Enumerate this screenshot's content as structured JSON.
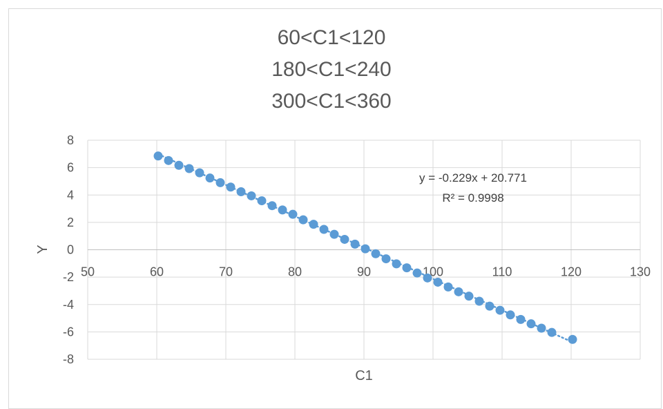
{
  "chart_data": {
    "type": "scatter",
    "title_lines": [
      "60<C1<120",
      "180<C1<240",
      "300<C1<360"
    ],
    "xlabel": "C1",
    "ylabel": "Y",
    "xlim": [
      50,
      130
    ],
    "ylim": [
      -8,
      8
    ],
    "x_ticks": [
      50,
      60,
      70,
      80,
      90,
      100,
      110,
      120,
      130
    ],
    "y_ticks": [
      8,
      6,
      4,
      2,
      0,
      -2,
      -4,
      -6,
      -8
    ],
    "grid": true,
    "marker_color": "#5B9BD5",
    "trendline": {
      "type": "linear",
      "slope": -0.229,
      "intercept": 20.771,
      "equation": "y = -0.229x + 20.771",
      "r_squared": "R² = 0.9998",
      "style": "dotted"
    },
    "series": [
      {
        "points": [
          [
            60.2,
            6.85
          ],
          [
            61.7,
            6.52
          ],
          [
            63.2,
            6.17
          ],
          [
            64.7,
            5.93
          ],
          [
            66.2,
            5.62
          ],
          [
            67.7,
            5.24
          ],
          [
            69.2,
            4.9
          ],
          [
            70.7,
            4.58
          ],
          [
            72.2,
            4.24
          ],
          [
            73.7,
            3.94
          ],
          [
            75.2,
            3.58
          ],
          [
            76.7,
            3.22
          ],
          [
            78.2,
            2.91
          ],
          [
            79.7,
            2.59
          ],
          [
            81.2,
            2.19
          ],
          [
            82.7,
            1.86
          ],
          [
            84.2,
            1.49
          ],
          [
            85.7,
            1.13
          ],
          [
            87.2,
            0.76
          ],
          [
            88.7,
            0.41
          ],
          [
            90.2,
            0.07
          ],
          [
            91.7,
            -0.29
          ],
          [
            93.2,
            -0.66
          ],
          [
            94.7,
            -1.03
          ],
          [
            96.2,
            -1.32
          ],
          [
            97.7,
            -1.7
          ],
          [
            99.2,
            -2.06
          ],
          [
            100.7,
            -2.37
          ],
          [
            102.2,
            -2.72
          ],
          [
            103.7,
            -3.07
          ],
          [
            105.2,
            -3.39
          ],
          [
            106.7,
            -3.76
          ],
          [
            108.2,
            -4.12
          ],
          [
            109.7,
            -4.42
          ],
          [
            111.2,
            -4.76
          ],
          [
            112.7,
            -5.09
          ],
          [
            114.2,
            -5.41
          ],
          [
            115.7,
            -5.73
          ],
          [
            117.2,
            -6.04
          ],
          [
            120.2,
            -6.55
          ]
        ]
      }
    ]
  }
}
